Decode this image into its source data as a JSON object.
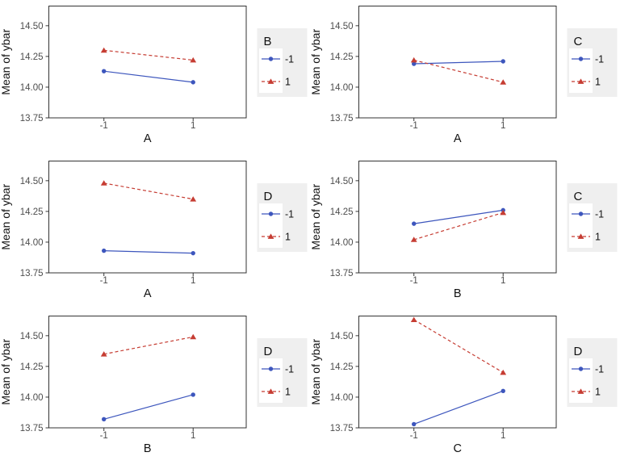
{
  "figure": {
    "background": "#FFFFFF",
    "tick_text_color": "#4D4D4D",
    "title_text_color": "#111111",
    "panel_border_color": "#333333",
    "legend_background": "#EFEFEF",
    "legend_key_background": "#FFFFFF",
    "series_colors": {
      "level_minus1": "#3D56BD",
      "level_plus1": "#C63D33"
    }
  },
  "chart_data": [
    {
      "type": "line",
      "id": "A-by-B",
      "xlabel": "A",
      "ylabel": "Mean of ybar",
      "legend_title": "B",
      "categories": [
        "-1",
        "1"
      ],
      "ytick_values": [
        13.75,
        14.0,
        14.25,
        14.5
      ],
      "ytick_labels": [
        "13.75",
        "14.00",
        "14.25",
        "14.50"
      ],
      "ylim": [
        13.75,
        14.66
      ],
      "series": [
        {
          "name": "-1",
          "values": [
            14.13,
            14.04
          ],
          "color": "#3D56BD",
          "dash": null,
          "marker": "circle"
        },
        {
          "name": "1",
          "values": [
            14.3,
            14.22
          ],
          "color": "#C63D33",
          "dash": "4 3",
          "marker": "triangle"
        }
      ]
    },
    {
      "type": "line",
      "id": "A-by-C",
      "xlabel": "A",
      "ylabel": "Mean of ybar",
      "legend_title": "C",
      "categories": [
        "-1",
        "1"
      ],
      "ytick_values": [
        13.75,
        14.0,
        14.25,
        14.5
      ],
      "ytick_labels": [
        "13.75",
        "14.00",
        "14.25",
        "14.50"
      ],
      "ylim": [
        13.75,
        14.66
      ],
      "series": [
        {
          "name": "-1",
          "values": [
            14.19,
            14.21
          ],
          "color": "#3D56BD",
          "dash": null,
          "marker": "circle"
        },
        {
          "name": "1",
          "values": [
            14.22,
            14.04
          ],
          "color": "#C63D33",
          "dash": "4 3",
          "marker": "triangle"
        }
      ]
    },
    {
      "type": "line",
      "id": "A-by-D",
      "xlabel": "A",
      "ylabel": "Mean of ybar",
      "legend_title": "D",
      "categories": [
        "-1",
        "1"
      ],
      "ytick_values": [
        13.75,
        14.0,
        14.25,
        14.5
      ],
      "ytick_labels": [
        "13.75",
        "14.00",
        "14.25",
        "14.50"
      ],
      "ylim": [
        13.75,
        14.66
      ],
      "series": [
        {
          "name": "-1",
          "values": [
            13.93,
            13.91
          ],
          "color": "#3D56BD",
          "dash": null,
          "marker": "circle"
        },
        {
          "name": "1",
          "values": [
            14.48,
            14.35
          ],
          "color": "#C63D33",
          "dash": "4 3",
          "marker": "triangle"
        }
      ]
    },
    {
      "type": "line",
      "id": "B-by-C",
      "xlabel": "B",
      "ylabel": "Mean of ybar",
      "legend_title": "C",
      "categories": [
        "-1",
        "1"
      ],
      "ytick_values": [
        13.75,
        14.0,
        14.25,
        14.5
      ],
      "ytick_labels": [
        "13.75",
        "14.00",
        "14.25",
        "14.50"
      ],
      "ylim": [
        13.75,
        14.66
      ],
      "series": [
        {
          "name": "-1",
          "values": [
            14.15,
            14.26
          ],
          "color": "#3D56BD",
          "dash": null,
          "marker": "circle"
        },
        {
          "name": "1",
          "values": [
            14.02,
            14.24
          ],
          "color": "#C63D33",
          "dash": "4 3",
          "marker": "triangle"
        }
      ]
    },
    {
      "type": "line",
      "id": "B-by-D",
      "xlabel": "B",
      "ylabel": "Mean of ybar",
      "legend_title": "D",
      "categories": [
        "-1",
        "1"
      ],
      "ytick_values": [
        13.75,
        14.0,
        14.25,
        14.5
      ],
      "ytick_labels": [
        "13.75",
        "14.00",
        "14.25",
        "14.50"
      ],
      "ylim": [
        13.75,
        14.66
      ],
      "series": [
        {
          "name": "-1",
          "values": [
            13.82,
            14.02
          ],
          "color": "#3D56BD",
          "dash": null,
          "marker": "circle"
        },
        {
          "name": "1",
          "values": [
            14.35,
            14.49
          ],
          "color": "#C63D33",
          "dash": "4 3",
          "marker": "triangle"
        }
      ]
    },
    {
      "type": "line",
      "id": "C-by-D",
      "xlabel": "C",
      "ylabel": "Mean of ybar",
      "legend_title": "D",
      "categories": [
        "-1",
        "1"
      ],
      "ytick_values": [
        13.75,
        14.0,
        14.25,
        14.5
      ],
      "ytick_labels": [
        "13.75",
        "14.00",
        "14.25",
        "14.50"
      ],
      "ylim": [
        13.75,
        14.66
      ],
      "series": [
        {
          "name": "-1",
          "values": [
            13.78,
            14.05
          ],
          "color": "#3D56BD",
          "dash": null,
          "marker": "circle"
        },
        {
          "name": "1",
          "values": [
            14.63,
            14.2
          ],
          "color": "#C63D33",
          "dash": "4 3",
          "marker": "triangle"
        }
      ]
    }
  ]
}
